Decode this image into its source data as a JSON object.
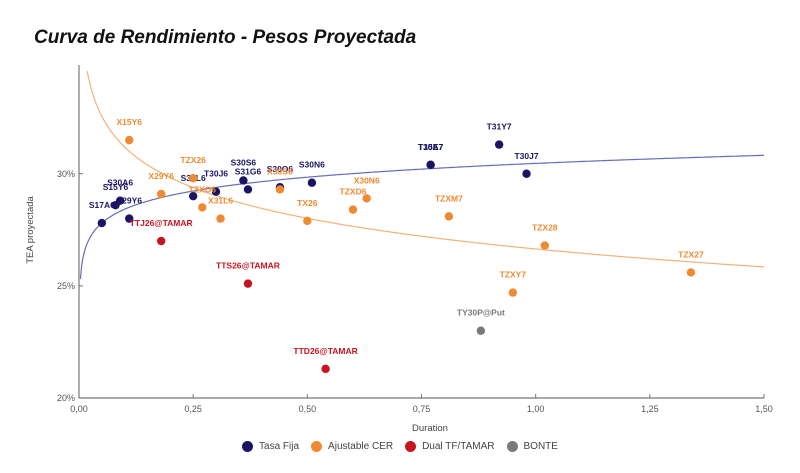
{
  "chart_data": {
    "type": "scatter",
    "title": "Curva de Rendimiento - Pesos Proyectada",
    "xlabel": "Duration",
    "ylabel": "TEA proyectada",
    "xlim": [
      0,
      1.5
    ],
    "ylim": [
      20,
      35
    ],
    "x_ticks": [
      0,
      0.25,
      0.5,
      0.75,
      1.0,
      1.25,
      1.5
    ],
    "x_tick_labels": [
      "0,00",
      "0,25",
      "0,50",
      "0,75",
      "1,00",
      "1,25",
      "1,50"
    ],
    "y_ticks": [
      20,
      25,
      30
    ],
    "y_tick_labels": [
      "20%",
      "25%",
      "30%"
    ],
    "grid": false,
    "legend_position": "bottom",
    "series": [
      {
        "name": "Tasa Fija",
        "color": "#1b1464",
        "trendline": "logarithmic",
        "points": [
          {
            "label": "S17A6",
            "x": 0.05,
            "y": 27.8
          },
          {
            "label": "S15Y6",
            "x": 0.08,
            "y": 28.6
          },
          {
            "label": "S30A6",
            "x": 0.09,
            "y": 28.8
          },
          {
            "label": "S29Y6",
            "x": 0.11,
            "y": 28.0
          },
          {
            "label": "S31L6",
            "x": 0.25,
            "y": 29.0
          },
          {
            "label": "T30J6",
            "x": 0.3,
            "y": 29.2
          },
          {
            "label": "S30S6",
            "x": 0.36,
            "y": 29.7
          },
          {
            "label": "S31G6",
            "x": 0.37,
            "y": 29.3
          },
          {
            "label": "S30O6",
            "x": 0.44,
            "y": 29.4
          },
          {
            "label": "S30N6",
            "x": 0.51,
            "y": 29.6
          },
          {
            "label": "T15E7",
            "x": 0.77,
            "y": 30.4
          },
          {
            "label": "T30A7",
            "x": 0.77,
            "y": 30.4
          },
          {
            "label": "T31Y7",
            "x": 0.92,
            "y": 31.3
          },
          {
            "label": "T30J7",
            "x": 0.98,
            "y": 30.0
          }
        ]
      },
      {
        "name": "Ajustable CER",
        "color": "#f08a30",
        "trendline": "logarithmic",
        "points": [
          {
            "label": "X15Y6",
            "x": 0.11,
            "y": 31.5
          },
          {
            "label": "X29Y6",
            "x": 0.18,
            "y": 29.1
          },
          {
            "label": "TZX26",
            "x": 0.25,
            "y": 29.8
          },
          {
            "label": "TZXO6",
            "x": 0.27,
            "y": 28.5
          },
          {
            "label": "X31L6",
            "x": 0.31,
            "y": 28.0
          },
          {
            "label": "X30S6",
            "x": 0.44,
            "y": 29.3
          },
          {
            "label": "TX26",
            "x": 0.5,
            "y": 27.9
          },
          {
            "label": "TZXD6",
            "x": 0.6,
            "y": 28.4
          },
          {
            "label": "X30N6",
            "x": 0.63,
            "y": 28.9
          },
          {
            "label": "TZXM7",
            "x": 0.81,
            "y": 28.1
          },
          {
            "label": "TZXY7",
            "x": 0.95,
            "y": 24.7
          },
          {
            "label": "TZX28",
            "x": 1.02,
            "y": 26.8
          },
          {
            "label": "TZX27",
            "x": 1.34,
            "y": 25.6
          }
        ]
      },
      {
        "name": "Dual TF/TAMAR",
        "color": "#c8141e",
        "points": [
          {
            "label": "TTJ26@TAMAR",
            "x": 0.18,
            "y": 27.0
          },
          {
            "label": "TTS26@TAMAR",
            "x": 0.37,
            "y": 25.1
          },
          {
            "label": "TTD26@TAMAR",
            "x": 0.54,
            "y": 21.3
          }
        ]
      },
      {
        "name": "BONTE",
        "color": "#7a7a7a",
        "points": [
          {
            "label": "TY30P@Put",
            "x": 0.88,
            "y": 23.0
          }
        ]
      }
    ]
  }
}
